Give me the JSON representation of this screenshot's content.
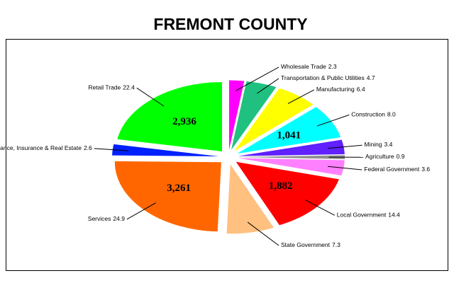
{
  "chart_data": {
    "type": "pie",
    "title": "FREMONT COUNTY",
    "categories": [
      "Wholesale Trade",
      "Transportation & Public Utilities",
      "Manufacturing",
      "Construction",
      "Mining",
      "Agriculture",
      "Federal Government",
      "Local Government",
      "State Government",
      "Services",
      "Finance, Insurance & Real Estate",
      "Retail Trade"
    ],
    "values": [
      2.3,
      4.7,
      6.4,
      8.0,
      3.4,
      0.9,
      3.6,
      14.4,
      7.3,
      24.9,
      2.6,
      22.4
    ],
    "value_labels": [
      "2.3",
      "4.7",
      "6.4",
      "8.0",
      "3.4",
      "0.9",
      "3.6",
      "14.4",
      "7.3",
      "24.9",
      "2.6",
      "22.4"
    ],
    "colors": [
      "#ff00ff",
      "#20c080",
      "#ffff00",
      "#00ffff",
      "#6020ff",
      "#909090",
      "#ff80ff",
      "#ff0000",
      "#ffc080",
      "#ff6600",
      "#0020ff",
      "#00ff00"
    ],
    "count_labels": [
      null,
      null,
      null,
      "1,041",
      null,
      null,
      null,
      "1,882",
      null,
      "3,261",
      null,
      "2,936"
    ]
  }
}
